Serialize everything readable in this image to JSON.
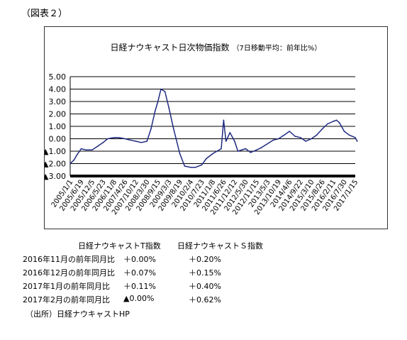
{
  "figure_label": "（図表２）",
  "chart_data": {
    "type": "line",
    "title": "日経ナウキャスト日次物価指数",
    "subtitle": "（7日移動平均：前年比%）",
    "ylim": [
      -3.0,
      5.0
    ],
    "yticks": [
      5,
      4,
      3,
      2,
      1,
      0,
      -1,
      -2,
      -3
    ],
    "ytick_labels": [
      "5.00",
      "4.00",
      "3.00",
      "2.00",
      "1.00",
      "0.00",
      "▲1.00",
      "▲2.00",
      "▲3.00"
    ],
    "xtick_labels": [
      "2005/1/1",
      "2005/6/19",
      "2005/12/5",
      "2006/5/23",
      "2006/11/8",
      "2007/4/26",
      "2007/10/12",
      "2008/3/30",
      "2008/9/15",
      "2009/3/3",
      "2009/8/19",
      "2010/2/4",
      "2010/7/23",
      "2011/1/8",
      "2011/6/26",
      "2011/12/12",
      "2012/5/30",
      "2012/11/15",
      "2013/5/3",
      "2013/10/19",
      "2014/4/6",
      "2014/9/22",
      "2015/3/10",
      "2015/8/26",
      "2016/2/11",
      "2016/7/30",
      "2017/1/15"
    ],
    "grid": true,
    "series": [
      {
        "color": "#1f2a80",
        "x": [
          "2005/1/1",
          "2005/3/1",
          "2005/4/15",
          "2005/6/19",
          "2005/9/1",
          "2005/12/5",
          "2006/3/1",
          "2006/5/23",
          "2006/8/1",
          "2006/11/8",
          "2007/1/15",
          "2007/4/26",
          "2007/7/15",
          "2007/10/12",
          "2008/1/1",
          "2008/3/30",
          "2008/6/1",
          "2008/8/1",
          "2008/9/15",
          "2008/11/1",
          "2009/1/1",
          "2009/3/3",
          "2009/5/15",
          "2009/8/19",
          "2009/11/1",
          "2010/2/4",
          "2010/4/15",
          "2010/7/23",
          "2010/10/1",
          "2011/1/8",
          "2011/3/15",
          "2011/5/20",
          "2011/6/26",
          "2011/8/1",
          "2011/10/1",
          "2011/12/12",
          "2012/2/1",
          "2012/5/30",
          "2012/8/15",
          "2012/11/15",
          "2013/2/1",
          "2013/5/3",
          "2013/8/1",
          "2013/10/19",
          "2014/1/15",
          "2014/4/6",
          "2014/7/1",
          "2014/9/22",
          "2014/12/15",
          "2015/3/10",
          "2015/6/1",
          "2015/8/26",
          "2015/11/15",
          "2016/2/11",
          "2016/4/1",
          "2016/5/15",
          "2016/7/30",
          "2016/10/15",
          "2017/1/15",
          "2017/2/15"
        ],
        "y": [
          -2.0,
          -1.7,
          -1.3,
          -0.8,
          -0.9,
          -0.9,
          -0.6,
          -0.3,
          0.0,
          0.1,
          0.1,
          0.0,
          -0.1,
          -0.2,
          -0.3,
          -0.2,
          0.8,
          2.2,
          3.0,
          4.0,
          3.8,
          2.5,
          0.8,
          -1.2,
          -2.2,
          -2.3,
          -2.3,
          -2.1,
          -1.6,
          -1.2,
          -1.0,
          -0.8,
          1.5,
          -0.2,
          0.5,
          -0.2,
          -1.0,
          -0.8,
          -1.1,
          -0.9,
          -0.7,
          -0.4,
          -0.1,
          0.0,
          0.3,
          0.6,
          0.2,
          0.1,
          -0.2,
          0.0,
          0.3,
          0.8,
          1.2,
          1.4,
          1.5,
          1.3,
          0.6,
          0.3,
          0.1,
          -0.2
        ]
      }
    ]
  },
  "table": {
    "headers": [
      "日経ナウキャストT指数",
      "日経ナウキャストＳ指数"
    ],
    "rows": [
      {
        "label": "2016年11月の前年同月比",
        "t": "＋0.00%",
        "s": "＋0.20%"
      },
      {
        "label": "2016年12月の前年同月比",
        "t": "＋0.07%",
        "s": "＋0.15%"
      },
      {
        "label": "2017年1月の前年同月比",
        "t": "＋0.11%",
        "s": "＋0.40%"
      },
      {
        "label": "2017年2月の前年同月比",
        "t": "▲0.00%",
        "s": "＋0.62%"
      }
    ]
  },
  "source": "（出所）日経ナウキャストHP"
}
